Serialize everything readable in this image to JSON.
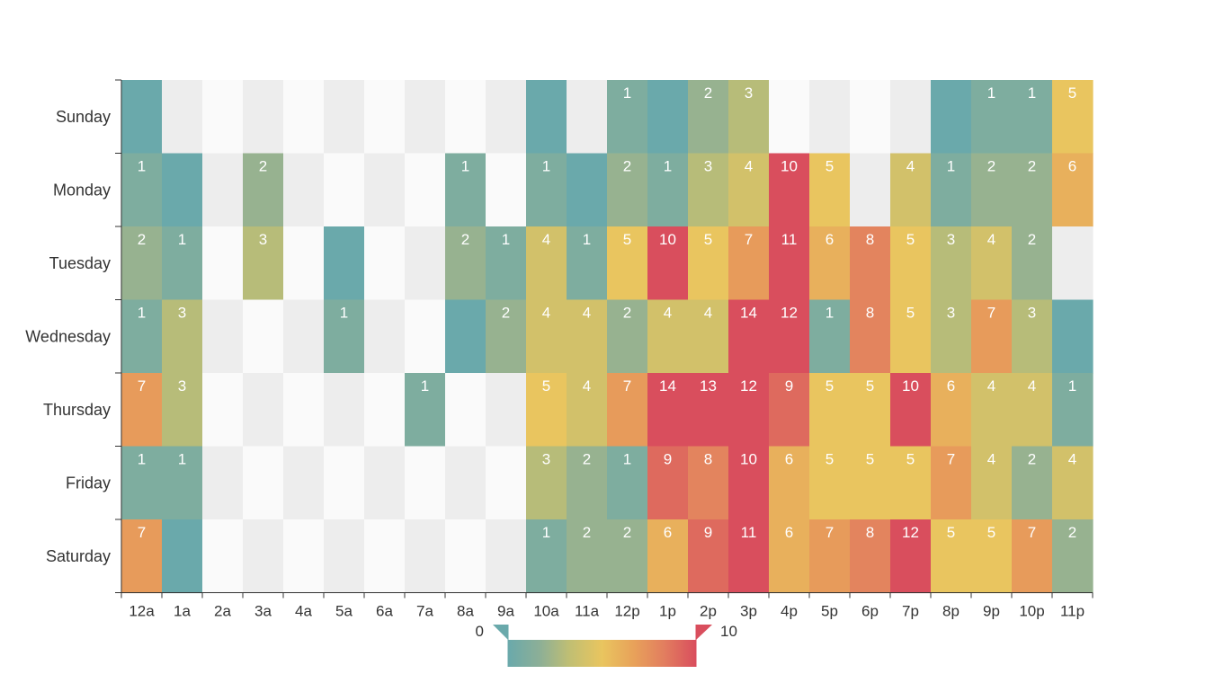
{
  "chart_data": {
    "type": "heatmap",
    "title": "",
    "xlabel": "",
    "ylabel": "",
    "x_categories": [
      "12a",
      "1a",
      "2a",
      "3a",
      "4a",
      "5a",
      "6a",
      "7a",
      "8a",
      "9a",
      "10a",
      "11a",
      "12p",
      "1p",
      "2p",
      "3p",
      "4p",
      "5p",
      "6p",
      "7p",
      "8p",
      "9p",
      "10p",
      "11p"
    ],
    "y_categories": [
      "Sunday",
      "Monday",
      "Tuesday",
      "Wednesday",
      "Thursday",
      "Friday",
      "Saturday"
    ],
    "values": [
      [
        0,
        null,
        null,
        null,
        null,
        null,
        null,
        null,
        null,
        null,
        0,
        null,
        1,
        0,
        2,
        3,
        null,
        null,
        null,
        null,
        0,
        1,
        1,
        5
      ],
      [
        1,
        0,
        null,
        2,
        null,
        null,
        null,
        null,
        1,
        null,
        1,
        0,
        2,
        1,
        3,
        4,
        10,
        5,
        null,
        4,
        1,
        2,
        2,
        6
      ],
      [
        2,
        1,
        null,
        3,
        null,
        0,
        null,
        null,
        2,
        1,
        4,
        1,
        5,
        10,
        5,
        7,
        11,
        6,
        8,
        5,
        3,
        4,
        2,
        null
      ],
      [
        1,
        3,
        null,
        null,
        null,
        1,
        null,
        null,
        0,
        2,
        4,
        4,
        2,
        4,
        4,
        14,
        12,
        1,
        8,
        5,
        3,
        7,
        3,
        0
      ],
      [
        7,
        3,
        null,
        null,
        null,
        null,
        null,
        1,
        null,
        null,
        5,
        4,
        7,
        14,
        13,
        12,
        9,
        5,
        5,
        10,
        6,
        4,
        4,
        1
      ],
      [
        1,
        1,
        null,
        null,
        null,
        null,
        null,
        null,
        null,
        null,
        3,
        2,
        1,
        9,
        8,
        10,
        6,
        5,
        5,
        5,
        7,
        4,
        2,
        4
      ],
      [
        7,
        0,
        null,
        null,
        null,
        null,
        null,
        null,
        null,
        null,
        1,
        2,
        2,
        6,
        9,
        11,
        6,
        7,
        8,
        12,
        5,
        5,
        7,
        2
      ]
    ],
    "visual_map": {
      "min": 0,
      "max": 10,
      "min_label": "0",
      "max_label": "10",
      "orient": "horizontal",
      "position": "bottom-center"
    },
    "color_stops": [
      "#6aa9ab",
      "#8caf97",
      "#c2bf72",
      "#e9c55f",
      "#e8a25a",
      "#e27d5f",
      "#d94e5d"
    ],
    "empty_cell_colors": [
      "#fafafa",
      "#ededed",
      "#e3e3e3"
    ]
  }
}
